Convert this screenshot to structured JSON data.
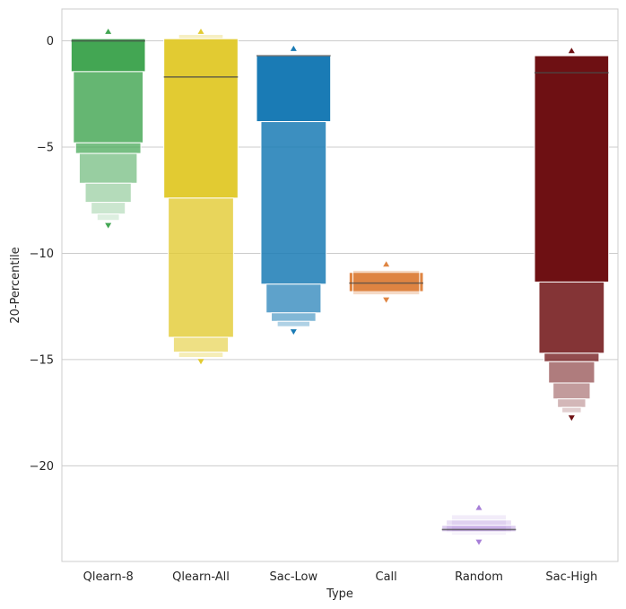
{
  "chart_data": {
    "type": "boxen",
    "xlabel": "Type",
    "ylabel": "20-Percentile",
    "ylim": [
      -24.5,
      1.5
    ],
    "yticks": [
      0,
      -5,
      -10,
      -15,
      -20
    ],
    "ytick_labels": [
      "0",
      "−5",
      "−10",
      "−15",
      "−20"
    ],
    "grid": "horizontal",
    "categories": [
      "Qlearn-8",
      "Qlearn-All",
      "Sac-Low",
      "Call",
      "Random",
      "Sac-High"
    ],
    "series": [
      {
        "category": "Qlearn-8",
        "color": "#43a653",
        "median": 0.0,
        "boxes": [
          {
            "low": -1.45,
            "high": 0.1,
            "width": 1.0,
            "opacity": 1.0
          },
          {
            "low": -4.8,
            "high": -1.45,
            "width": 0.94,
            "opacity": 0.82
          },
          {
            "low": -5.3,
            "high": -4.8,
            "width": 0.88,
            "opacity": 0.72
          },
          {
            "low": -6.7,
            "high": -5.3,
            "width": 0.78,
            "opacity": 0.55
          },
          {
            "low": -7.6,
            "high": -6.7,
            "width": 0.62,
            "opacity": 0.4
          },
          {
            "low": -8.15,
            "high": -7.6,
            "width": 0.46,
            "opacity": 0.28
          },
          {
            "low": -8.45,
            "high": -8.15,
            "width": 0.3,
            "opacity": 0.18
          }
        ],
        "outliers": [
          {
            "y": 0.45,
            "dir": "up"
          },
          {
            "y": -8.7,
            "dir": "down"
          }
        ]
      },
      {
        "category": "Qlearn-All",
        "color": "#e2cb32",
        "median": -1.7,
        "boxes": [
          {
            "low": 0.1,
            "high": 0.3,
            "width": 0.6,
            "opacity": 0.3
          },
          {
            "low": -7.4,
            "high": 0.1,
            "width": 1.0,
            "opacity": 1.0
          },
          {
            "low": -13.95,
            "high": -7.4,
            "width": 0.88,
            "opacity": 0.8
          },
          {
            "low": -14.65,
            "high": -13.95,
            "width": 0.74,
            "opacity": 0.6
          },
          {
            "low": -14.9,
            "high": -14.65,
            "width": 0.6,
            "opacity": 0.35
          }
        ],
        "outliers": [
          {
            "y": 0.45,
            "dir": "up"
          },
          {
            "y": -15.1,
            "dir": "down"
          }
        ]
      },
      {
        "category": "Sac-Low",
        "color": "#1a7bb5",
        "median": -0.7,
        "boxes": [
          {
            "low": -3.8,
            "high": -0.7,
            "width": 1.0,
            "opacity": 1.0
          },
          {
            "low": -11.45,
            "high": -3.8,
            "width": 0.88,
            "opacity": 0.85
          },
          {
            "low": -12.8,
            "high": -11.45,
            "width": 0.74,
            "opacity": 0.7
          },
          {
            "low": -13.2,
            "high": -12.8,
            "width": 0.6,
            "opacity": 0.55
          },
          {
            "low": -13.45,
            "high": -13.2,
            "width": 0.44,
            "opacity": 0.35
          }
        ],
        "outliers": [
          {
            "y": -0.35,
            "dir": "up"
          },
          {
            "y": -13.7,
            "dir": "down"
          }
        ]
      },
      {
        "category": "Call",
        "color": "#df8542",
        "median": -11.4,
        "boxes": [
          {
            "low": -11.8,
            "high": -10.9,
            "width": 1.0,
            "opacity": 1.0
          },
          {
            "low": -11.95,
            "high": -10.8,
            "width": 0.9,
            "opacity": 0.3
          }
        ],
        "outliers": [
          {
            "y": -10.5,
            "dir": "up"
          },
          {
            "y": -12.2,
            "dir": "down"
          }
        ]
      },
      {
        "category": "Random",
        "color": "#a77fd8",
        "median": -23.0,
        "boxes": [
          {
            "low": -23.25,
            "high": -22.3,
            "width": 0.74,
            "opacity": 0.15
          },
          {
            "low": -23.15,
            "high": -22.55,
            "width": 0.88,
            "opacity": 0.25
          },
          {
            "low": -23.1,
            "high": -22.8,
            "width": 1.0,
            "opacity": 0.4
          }
        ],
        "outliers": [
          {
            "y": -21.95,
            "dir": "up"
          },
          {
            "y": -23.6,
            "dir": "down"
          }
        ]
      },
      {
        "category": "Sac-High",
        "color": "#6e1013",
        "median": -1.5,
        "boxes": [
          {
            "low": -11.35,
            "high": -0.7,
            "width": 1.0,
            "opacity": 1.0
          },
          {
            "low": -14.7,
            "high": -11.35,
            "width": 0.88,
            "opacity": 0.85
          },
          {
            "low": -15.1,
            "high": -14.7,
            "width": 0.74,
            "opacity": 0.75
          },
          {
            "low": -16.1,
            "high": -15.1,
            "width": 0.62,
            "opacity": 0.55
          },
          {
            "low": -16.85,
            "high": -16.1,
            "width": 0.5,
            "opacity": 0.42
          },
          {
            "low": -17.25,
            "high": -16.85,
            "width": 0.38,
            "opacity": 0.3
          },
          {
            "low": -17.5,
            "high": -17.25,
            "width": 0.26,
            "opacity": 0.2
          }
        ],
        "outliers": [
          {
            "y": -0.45,
            "dir": "up"
          },
          {
            "y": -17.75,
            "dir": "down"
          }
        ]
      }
    ]
  }
}
